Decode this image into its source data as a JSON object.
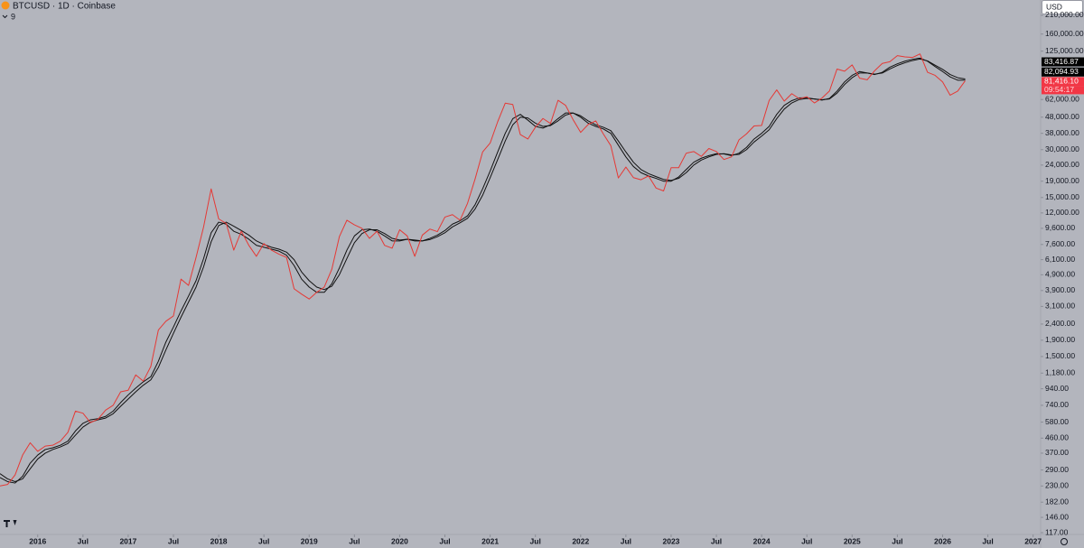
{
  "chart_data": {
    "type": "line",
    "title": "BTCUSD · 1D · Coinbase",
    "indicators_label": "9",
    "currency": "USD",
    "countdown": "09:54:17",
    "log_scale": true,
    "x": [
      "2015-08",
      "2015-09",
      "2015-10",
      "2015-11",
      "2015-12",
      "2016-01",
      "2016-02",
      "2016-03",
      "2016-04",
      "2016-05",
      "2016-06",
      "2016-07",
      "2016-08",
      "2016-09",
      "2016-10",
      "2016-11",
      "2016-12",
      "2017-01",
      "2017-02",
      "2017-03",
      "2017-04",
      "2017-05",
      "2017-06",
      "2017-07",
      "2017-08",
      "2017-09",
      "2017-10",
      "2017-11",
      "2017-12",
      "2018-01",
      "2018-02",
      "2018-03",
      "2018-04",
      "2018-05",
      "2018-06",
      "2018-07",
      "2018-08",
      "2018-09",
      "2018-10",
      "2018-11",
      "2018-12",
      "2019-01",
      "2019-02",
      "2019-03",
      "2019-04",
      "2019-05",
      "2019-06",
      "2019-07",
      "2019-08",
      "2019-09",
      "2019-10",
      "2019-11",
      "2019-12",
      "2020-01",
      "2020-02",
      "2020-03",
      "2020-04",
      "2020-05",
      "2020-06",
      "2020-07",
      "2020-08",
      "2020-09",
      "2020-10",
      "2020-11",
      "2020-12",
      "2021-01",
      "2021-02",
      "2021-03",
      "2021-04",
      "2021-05",
      "2021-06",
      "2021-07",
      "2021-08",
      "2021-09",
      "2021-10",
      "2021-11",
      "2021-12",
      "2022-01",
      "2022-02",
      "2022-03",
      "2022-04",
      "2022-05",
      "2022-06",
      "2022-07",
      "2022-08",
      "2022-09",
      "2022-10",
      "2022-11",
      "2022-12",
      "2023-01",
      "2023-02",
      "2023-03",
      "2023-04",
      "2023-05",
      "2023-06",
      "2023-07",
      "2023-08",
      "2023-09",
      "2023-10",
      "2023-11",
      "2023-12",
      "2024-01",
      "2024-02",
      "2024-03",
      "2024-04",
      "2024-05",
      "2024-06",
      "2024-07",
      "2024-08",
      "2024-09",
      "2024-10",
      "2024-11",
      "2024-12",
      "2025-01",
      "2025-02",
      "2025-03",
      "2025-04",
      "2025-05",
      "2025-06",
      "2025-07",
      "2025-08",
      "2025-09",
      "2025-10",
      "2025-11",
      "2025-12",
      "2026-01",
      "2026-02",
      "2026-03",
      "2026-04"
    ],
    "series": [
      {
        "color": "#e53935",
        "values": [
          230,
          235,
          270,
          360,
          430,
          380,
          410,
          415,
          440,
          500,
          680,
          660,
          575,
          605,
          690,
          740,
          900,
          920,
          1150,
          1050,
          1300,
          2200,
          2500,
          2700,
          4600,
          4200,
          6300,
          9800,
          17000,
          11000,
          10300,
          7000,
          9200,
          7500,
          6400,
          7700,
          7000,
          6600,
          6300,
          4000,
          3700,
          3450,
          3800,
          4100,
          5300,
          8500,
          10800,
          10100,
          9600,
          8300,
          9200,
          7500,
          7200,
          9400,
          8600,
          6400,
          8700,
          9500,
          9150,
          11300,
          11700,
          10800,
          13800,
          19600,
          29000,
          33000,
          45000,
          58800,
          57700,
          37300,
          35000,
          41500,
          47100,
          43800,
          61300,
          57000,
          46300,
          38500,
          43200,
          45500,
          37700,
          31800,
          19900,
          23300,
          20000,
          19400,
          20500,
          17200,
          16500,
          23100,
          23100,
          28500,
          29200,
          27200,
          30500,
          29200,
          26000,
          27000,
          34600,
          37700,
          42300,
          42600,
          61200,
          71300,
          60600,
          67500,
          62700,
          64600,
          59000,
          63300,
          70200,
          96400,
          93400,
          102400,
          84400,
          82500,
          94200,
          104600,
          107100,
          117000,
          115000,
          114000,
          120000,
          92000,
          88000,
          80000,
          66000,
          70000,
          81416.1
        ]
      },
      {
        "color": "#111111",
        "values": [
          260,
          245,
          240,
          265,
          320,
          360,
          390,
          400,
          415,
          440,
          510,
          570,
          600,
          610,
          630,
          680,
          770,
          860,
          950,
          1040,
          1120,
          1400,
          1850,
          2300,
          2900,
          3600,
          4500,
          6200,
          9000,
          10500,
          10200,
          9200,
          8800,
          8200,
          7500,
          7300,
          7100,
          6900,
          6500,
          5600,
          4600,
          4100,
          3800,
          3800,
          4300,
          5400,
          7000,
          8600,
          9400,
          9500,
          9200,
          8600,
          8000,
          8000,
          8200,
          8000,
          8000,
          8300,
          8700,
          9300,
          10200,
          10700,
          11500,
          13500,
          17000,
          22000,
          29000,
          38000,
          47000,
          50000,
          46000,
          42000,
          41000,
          43000,
          47000,
          51000,
          51000,
          48000,
          44000,
          42000,
          40500,
          38000,
          32000,
          27000,
          23500,
          21500,
          20500,
          19800,
          19000,
          19000,
          20200,
          22500,
          25000,
          26500,
          27500,
          28300,
          28200,
          27500,
          28500,
          31000,
          35000,
          38000,
          42000,
          50000,
          57000,
          61000,
          63500,
          63500,
          62500,
          61500,
          63000,
          70000,
          80000,
          88000,
          93000,
          91000,
          89000,
          92000,
          99000,
          104000,
          108000,
          111000,
          113000,
          108000,
          100000,
          93000,
          86000,
          82000,
          82094.93
        ]
      },
      {
        "color": "#111111",
        "values": [
          275,
          255,
          245,
          255,
          295,
          340,
          370,
          390,
          405,
          425,
          480,
          540,
          580,
          600,
          615,
          655,
          730,
          810,
          900,
          990,
          1070,
          1280,
          1650,
          2100,
          2650,
          3300,
          4100,
          5500,
          7900,
          10000,
          10500,
          9900,
          9300,
          8700,
          8000,
          7600,
          7300,
          7100,
          6800,
          6100,
          5100,
          4500,
          4100,
          3950,
          4150,
          4900,
          6200,
          7800,
          8900,
          9400,
          9400,
          8900,
          8300,
          8100,
          8200,
          8100,
          8000,
          8150,
          8500,
          9000,
          9800,
          10400,
          11100,
          12700,
          15500,
          20000,
          26000,
          34000,
          43000,
          48000,
          47500,
          44000,
          42000,
          42500,
          45500,
          49500,
          51000,
          49000,
          45500,
          43000,
          41500,
          39500,
          34000,
          29000,
          25000,
          22500,
          21200,
          20300,
          19500,
          19200,
          19800,
          21500,
          24000,
          25800,
          27000,
          28000,
          28300,
          27800,
          28000,
          30000,
          33500,
          36500,
          40000,
          47000,
          54000,
          59000,
          62000,
          63000,
          62500,
          61800,
          62500,
          68000,
          77000,
          85000,
          91000,
          91000,
          89500,
          91000,
          96500,
          101500,
          105500,
          109000,
          111500,
          108500,
          102000,
          96000,
          89000,
          85000,
          83416.87
        ]
      }
    ],
    "price_labels": [
      {
        "value": 83416.87,
        "label": "83,416.87",
        "color": "#000000"
      },
      {
        "value": 82094.93,
        "label": "82,094.93",
        "color": "#000000"
      },
      {
        "value": 81416.1,
        "label": "81,416.10",
        "color": "#f23645"
      }
    ],
    "xlim": [
      "2015-08",
      "2027-02"
    ],
    "xticks": [
      {
        "value": "2016-01",
        "label": "2016"
      },
      {
        "value": "2016-07",
        "label": "Jul"
      },
      {
        "value": "2017-01",
        "label": "2017"
      },
      {
        "value": "2017-07",
        "label": "Jul"
      },
      {
        "value": "2018-01",
        "label": "2018"
      },
      {
        "value": "2018-07",
        "label": "Jul"
      },
      {
        "value": "2019-01",
        "label": "2019"
      },
      {
        "value": "2019-07",
        "label": "Jul"
      },
      {
        "value": "2020-01",
        "label": "2020"
      },
      {
        "value": "2020-07",
        "label": "Jul"
      },
      {
        "value": "2021-01",
        "label": "2021"
      },
      {
        "value": "2021-07",
        "label": "Jul"
      },
      {
        "value": "2022-01",
        "label": "2022"
      },
      {
        "value": "2022-07",
        "label": "Jul"
      },
      {
        "value": "2023-01",
        "label": "2023"
      },
      {
        "value": "2023-07",
        "label": "Jul"
      },
      {
        "value": "2024-01",
        "label": "2024"
      },
      {
        "value": "2024-07",
        "label": "Jul"
      },
      {
        "value": "2025-01",
        "label": "2025"
      },
      {
        "value": "2025-07",
        "label": "Jul"
      },
      {
        "value": "2026-01",
        "label": "2026"
      },
      {
        "value": "2026-07",
        "label": "Jul"
      },
      {
        "value": "2027-01",
        "label": "2027"
      }
    ],
    "ylim": [
      114,
      262000
    ],
    "yticks": [
      {
        "value": 210000,
        "label": "210,000.00"
      },
      {
        "value": 160000,
        "label": "160,000.00"
      },
      {
        "value": 125000,
        "label": "125,000.00"
      },
      {
        "value": 62000,
        "label": "62,000.00"
      },
      {
        "value": 48000,
        "label": "48,000.00"
      },
      {
        "value": 38000,
        "label": "38,000.00"
      },
      {
        "value": 30000,
        "label": "30,000.00"
      },
      {
        "value": 24000,
        "label": "24,000.00"
      },
      {
        "value": 19000,
        "label": "19,000.00"
      },
      {
        "value": 15000,
        "label": "15,000.00"
      },
      {
        "value": 12000,
        "label": "12,000.00"
      },
      {
        "value": 9600,
        "label": "9,600.00"
      },
      {
        "value": 7600,
        "label": "7,600.00"
      },
      {
        "value": 6100,
        "label": "6,100.00"
      },
      {
        "value": 4900,
        "label": "4,900.00"
      },
      {
        "value": 3900,
        "label": "3,900.00"
      },
      {
        "value": 3100,
        "label": "3,100.00"
      },
      {
        "value": 2400,
        "label": "2,400.00"
      },
      {
        "value": 1900,
        "label": "1,900.00"
      },
      {
        "value": 1500,
        "label": "1,500.00"
      },
      {
        "value": 1180,
        "label": "1,180.00"
      },
      {
        "value": 940,
        "label": "940.00"
      },
      {
        "value": 740,
        "label": "740.00"
      },
      {
        "value": 580,
        "label": "580.00"
      },
      {
        "value": 460,
        "label": "460.00"
      },
      {
        "value": 370,
        "label": "370.00"
      },
      {
        "value": 290,
        "label": "290.00"
      },
      {
        "value": 230,
        "label": "230.00"
      },
      {
        "value": 182,
        "label": "182.00"
      },
      {
        "value": 146,
        "label": "146.00"
      },
      {
        "value": 117,
        "label": "117.00"
      }
    ]
  }
}
